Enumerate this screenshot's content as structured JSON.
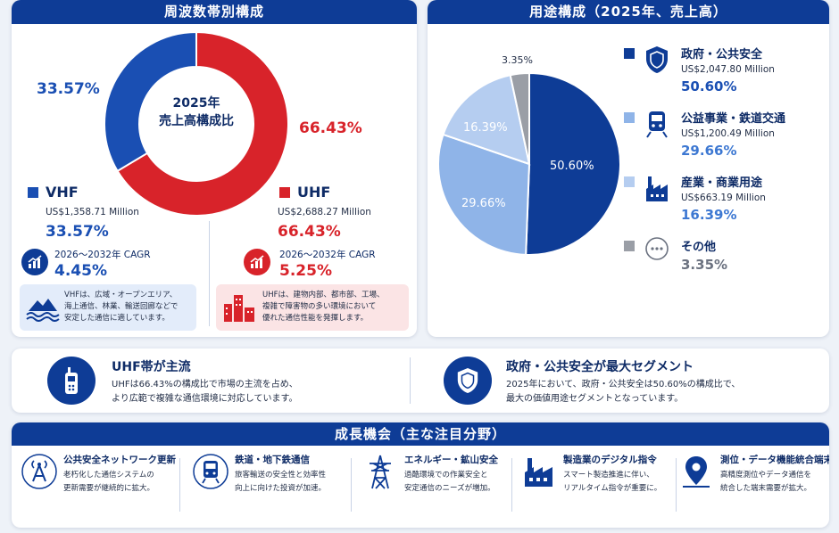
{
  "left_panel": {
    "title": "周波数帯別構成",
    "center_line1": "2025年",
    "center_line2": "売上高構成比",
    "outer_pct_vhf": "33.57%",
    "outer_pct_uhf": "66.43%",
    "vhf": {
      "name": "VHF",
      "value": "US$1,358.71 Million",
      "pct": "33.57%",
      "cagr_label": "2026～2032年 CAGR",
      "cagr": "4.45%",
      "note_line1": "VHFは、広域・オープンエリア、",
      "note_line2": "海上通信、林業、輸送回廊などで",
      "note_line3": "安定した通信に適しています。"
    },
    "uhf": {
      "name": "UHF",
      "value": "US$2,688.27 Million",
      "pct": "66.43%",
      "cagr_label": "2026～2032年 CAGR",
      "cagr": "5.25%",
      "note_line1": "UHFは、建物内部、都市部、工場、",
      "note_line2": "複雑で障害物の多い環境において",
      "note_line3": "優れた通信性能を発揮します。"
    }
  },
  "right_panel": {
    "title": "用途構成（2025年、売上高）",
    "segments": [
      {
        "name": "政府・公共安全",
        "value": "US$2,047.80 Million",
        "pct": "50.60%",
        "icon": "shield-icon"
      },
      {
        "name": "公益事業・鉄道交通",
        "value": "US$1,200.49 Million",
        "pct": "29.66%",
        "icon": "train-icon"
      },
      {
        "name": "産業・商業用途",
        "value": "US$663.19 Million",
        "pct": "16.39%",
        "icon": "factory-icon"
      },
      {
        "name": "その他",
        "value": "",
        "pct": "3.35%",
        "icon": "more-icon"
      }
    ],
    "pie_labels": {
      "gov": "50.60%",
      "util": "29.66%",
      "ind": "16.39%",
      "other": "3.35%"
    }
  },
  "chart_data": [
    {
      "type": "pie",
      "title": "周波数帯別構成",
      "categories": [
        "VHF",
        "UHF"
      ],
      "values": [
        33.57,
        66.43
      ],
      "unit": "%"
    },
    {
      "type": "pie",
      "title": "用途構成（2025年、売上高）",
      "categories": [
        "政府・公共安全",
        "公益事業・鉄道交通",
        "産業・商業用途",
        "その他"
      ],
      "values": [
        50.6,
        29.66,
        16.39,
        3.35
      ],
      "unit": "%"
    }
  ],
  "highlights": [
    {
      "title": "UHF帯が主流",
      "line1": "UHFは66.43%の構成比で市場の主流を占め、",
      "line2": "より広範で複雑な通信環境に対応しています。"
    },
    {
      "title": "政府・公共安全が最大セグメント",
      "line1": "2025年において、政府・公共安全は50.60%の構成比で、",
      "line2": "最大の価値用途セグメントとなっています。"
    }
  ],
  "growth": {
    "title": "成長機会（主な注目分野）",
    "items": [
      {
        "title": "公共安全ネットワーク更新",
        "line1": "老朽化した通信システムの",
        "line2": "更新需要が継続的に拡大。"
      },
      {
        "title": "鉄道・地下鉄通信",
        "line1": "旅客輸送の安全性と効率性",
        "line2": "向上に向けた投資が加速。"
      },
      {
        "title": "エネルギー・鉱山安全",
        "line1": "過酷環境での作業安全と",
        "line2": "安定通信のニーズが増加。"
      },
      {
        "title": "製造業のデジタル指令",
        "line1": "スマート製造推進に伴い、",
        "line2": "リアルタイム指令が重要に。"
      },
      {
        "title": "測位・データ機能統合端末",
        "line1": "高精度測位やデータ通信を",
        "line2": "統合した端末需要が拡大。"
      }
    ]
  },
  "colors": {
    "navy": "#0e3c96",
    "vhf_blue": "#1a4fb3",
    "uhf_red": "#d8232a",
    "light_blue": "#8fb4e8",
    "pale_blue": "#b5cdf0",
    "gray": "#9a9ea6"
  }
}
